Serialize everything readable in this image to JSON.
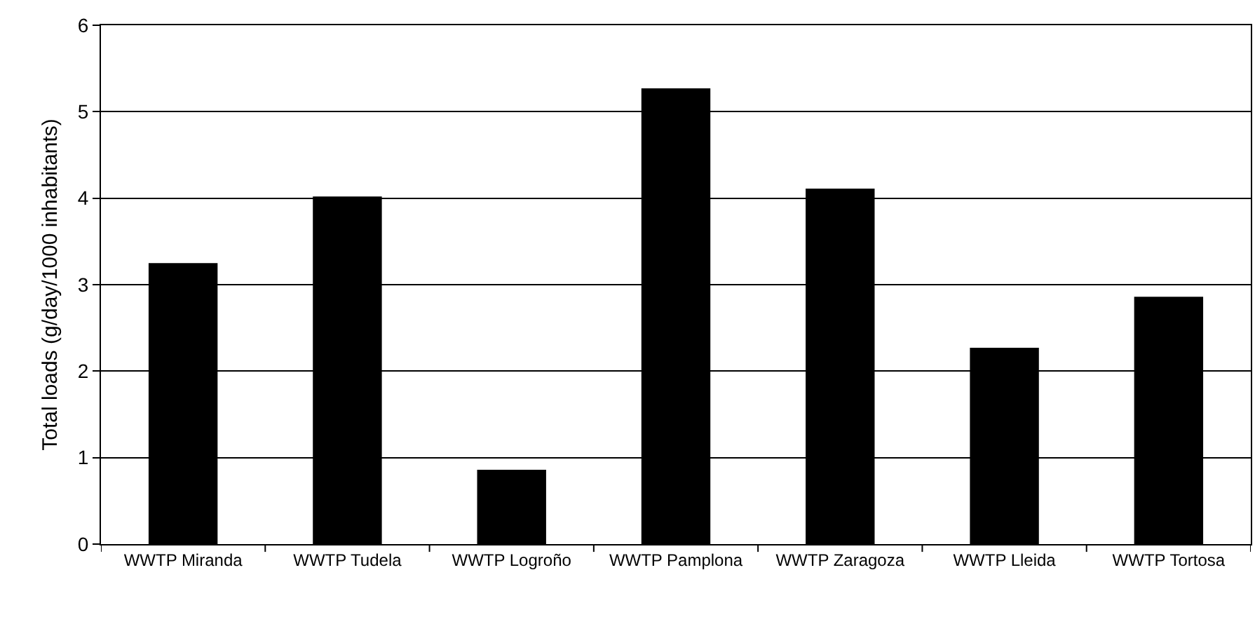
{
  "chart_data": {
    "type": "bar",
    "ylabel": "Total loads (g/day/1000 inhabitants)",
    "categories": [
      "WWTP Miranda",
      "WWTP Tudela",
      "WWTP Logroño",
      "WWTP Pamplona",
      "WWTP Zaragoza",
      "WWTP Lleida",
      "WWTP Tortosa"
    ],
    "values": [
      3.25,
      4.02,
      0.86,
      5.27,
      4.11,
      2.27,
      2.86
    ],
    "color": "#000000",
    "ylim": [
      0,
      6
    ],
    "yticks": [
      0,
      1,
      2,
      3,
      4,
      5,
      6
    ],
    "grid": "y",
    "legend": false
  }
}
